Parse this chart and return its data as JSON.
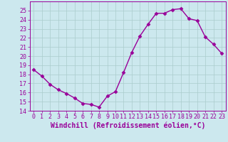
{
  "x": [
    0,
    1,
    2,
    3,
    4,
    5,
    6,
    7,
    8,
    9,
    10,
    11,
    12,
    13,
    14,
    15,
    16,
    17,
    18,
    19,
    20,
    21,
    22,
    23
  ],
  "y": [
    18.5,
    17.8,
    16.9,
    16.3,
    15.9,
    15.4,
    14.8,
    14.7,
    14.4,
    15.6,
    16.1,
    18.2,
    20.4,
    22.2,
    23.5,
    24.7,
    24.7,
    25.1,
    25.2,
    24.1,
    23.9,
    22.1,
    21.3,
    20.3
  ],
  "line_color": "#990099",
  "marker": "D",
  "markersize": 2.5,
  "linewidth": 1.0,
  "xlabel": "Windchill (Refroidissement éolien,°C)",
  "xlabel_fontsize": 7,
  "ylim": [
    14,
    26
  ],
  "xlim": [
    -0.5,
    23.5
  ],
  "yticks": [
    14,
    15,
    16,
    17,
    18,
    19,
    20,
    21,
    22,
    23,
    24,
    25
  ],
  "xticks": [
    0,
    1,
    2,
    3,
    4,
    5,
    6,
    7,
    8,
    9,
    10,
    11,
    12,
    13,
    14,
    15,
    16,
    17,
    18,
    19,
    20,
    21,
    22,
    23
  ],
  "xtick_labels": [
    "0",
    "1",
    "2",
    "3",
    "4",
    "5",
    "6",
    "7",
    "8",
    "9",
    "10",
    "11",
    "12",
    "13",
    "14",
    "15",
    "16",
    "17",
    "18",
    "19",
    "20",
    "21",
    "22",
    "23"
  ],
  "background_color": "#cce8ee",
  "grid_color": "#aacccc",
  "tick_fontsize": 6,
  "spine_color": "#990099"
}
